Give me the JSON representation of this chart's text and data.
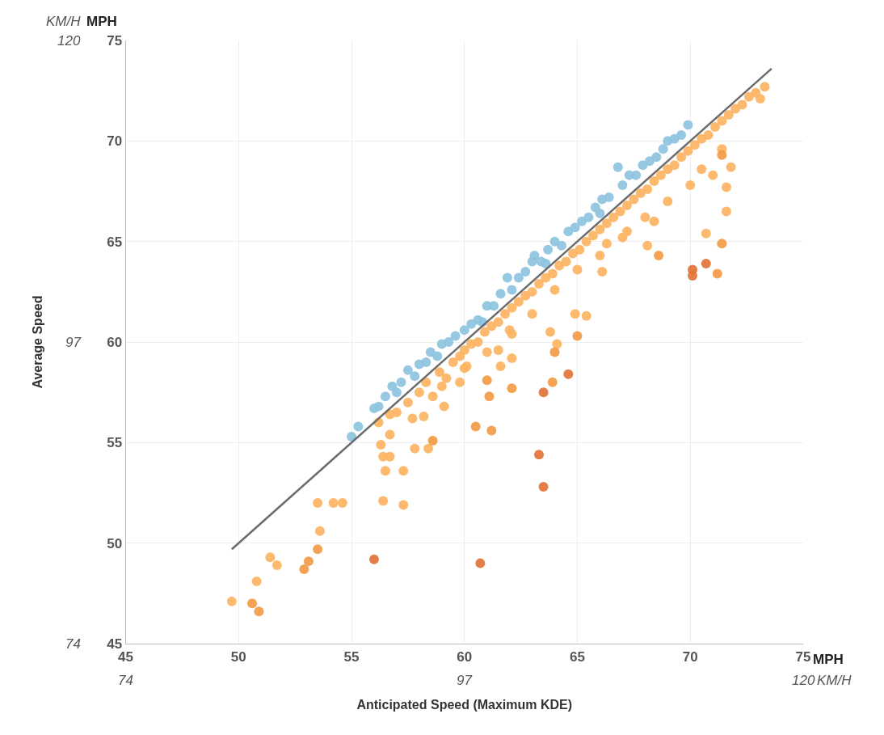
{
  "chart_data": {
    "type": "scatter",
    "xlabel": "Anticipated Speed (Maximum KDE)",
    "y2label": "Average Speed",
    "xlim": [
      45,
      75
    ],
    "xticks": [
      45,
      50,
      55,
      60,
      65,
      70,
      75
    ],
    "ylim": [
      45,
      75
    ],
    "yticks": [
      45,
      50,
      55,
      60,
      65,
      70,
      75
    ],
    "x2lim": [
      74,
      120
    ],
    "x2ticks": [
      74,
      97,
      120
    ],
    "y2lim": [
      74,
      120
    ],
    "y2ticks": [
      74,
      97,
      120
    ],
    "grid": true,
    "legend": false,
    "marker": "circle",
    "tick_labels": "xy",
    "annotations": [
      "KM/H",
      "MPH",
      "MPH",
      "KM/H"
    ],
    "series": [
      {
        "color": "#8ec3e0",
        "x": [
          55.0,
          55.3,
          56.0,
          56.2,
          56.5,
          56.8,
          57.0,
          57.2,
          57.5,
          57.8,
          58.0,
          58.3,
          58.5,
          58.8,
          59.0,
          59.3,
          59.6,
          60.0,
          60.3,
          60.6,
          61.0,
          61.3,
          61.6,
          61.9,
          62.1,
          62.4,
          62.7,
          63.0,
          63.1,
          63.4,
          63.7,
          64.0,
          64.3,
          64.6,
          64.9,
          65.2,
          65.5,
          65.8,
          66.1,
          66.4,
          66.8,
          67.0,
          67.3,
          67.6,
          67.9,
          68.2,
          68.5,
          68.8,
          69.0,
          69.3,
          69.6,
          69.9,
          66.0,
          63.6,
          60.8
        ],
        "values": [
          55.3,
          55.8,
          56.7,
          56.8,
          57.3,
          57.8,
          57.5,
          58.0,
          58.6,
          58.3,
          58.9,
          59.0,
          59.5,
          59.3,
          59.9,
          60.0,
          60.3,
          60.6,
          60.9,
          61.1,
          61.8,
          61.8,
          62.4,
          63.2,
          62.6,
          63.2,
          63.5,
          64.0,
          64.3,
          64.0,
          64.6,
          65.0,
          64.8,
          65.5,
          65.7,
          66.0,
          66.2,
          66.7,
          67.1,
          67.2,
          68.7,
          67.8,
          68.3,
          68.3,
          68.8,
          69.0,
          69.2,
          69.6,
          70.0,
          70.1,
          70.3,
          70.8,
          66.4,
          63.9,
          61.0
        ]
      },
      {
        "color": "#fdb462",
        "x": [
          57.0,
          57.5,
          58.0,
          58.3,
          58.6,
          58.9,
          59.2,
          59.5,
          59.8,
          60.0,
          60.3,
          60.6,
          60.9,
          61.2,
          61.5,
          61.8,
          62.1,
          62.4,
          62.7,
          63.0,
          63.3,
          63.6,
          63.9,
          64.2,
          64.5,
          64.8,
          65.1,
          65.4,
          65.7,
          66.0,
          66.3,
          66.6,
          66.9,
          67.2,
          67.5,
          67.8,
          68.1,
          68.4,
          68.7,
          69.0,
          69.3,
          69.6,
          69.9,
          70.2,
          70.5,
          70.8,
          71.1,
          71.4,
          71.7,
          72.0,
          72.3,
          72.6,
          72.9,
          73.1,
          73.3,
          64.0,
          65.0,
          66.0,
          67.0,
          68.0,
          69.0,
          70.0,
          70.5,
          71.0,
          62.0,
          63.0,
          61.0,
          60.0,
          59.0,
          49.7,
          50.8,
          51.4,
          51.7,
          53.6,
          53.5,
          54.2,
          54.6,
          56.4,
          57.3,
          56.5,
          57.3,
          56.4,
          56.7,
          56.3,
          56.7,
          56.2,
          57.8,
          58.4,
          56.7,
          57.7,
          58.2,
          59.1,
          59.8,
          60.1,
          61.5,
          62.1,
          62.1,
          61.6,
          71.6,
          70.7,
          71.6,
          71.8,
          71.4,
          68.4,
          67.2,
          66.3,
          66.1,
          65.4,
          64.9,
          63.8,
          64.1,
          68.1
        ],
        "values": [
          56.5,
          57.0,
          57.5,
          58.0,
          57.3,
          58.5,
          58.2,
          59.0,
          59.3,
          59.6,
          59.9,
          60.0,
          60.5,
          60.8,
          61.0,
          61.4,
          61.7,
          62.0,
          62.3,
          62.5,
          62.9,
          63.2,
          63.4,
          63.8,
          64.0,
          64.4,
          64.6,
          65.0,
          65.3,
          65.6,
          65.9,
          66.2,
          66.5,
          66.8,
          67.1,
          67.4,
          67.6,
          68.0,
          68.3,
          68.6,
          68.8,
          69.2,
          69.5,
          69.8,
          70.1,
          70.3,
          70.7,
          71.0,
          71.3,
          71.6,
          71.8,
          72.2,
          72.4,
          72.1,
          72.7,
          62.6,
          63.6,
          64.3,
          65.2,
          66.2,
          67.0,
          67.8,
          68.6,
          68.3,
          60.6,
          61.4,
          59.5,
          58.7,
          57.8,
          47.1,
          48.1,
          49.3,
          48.9,
          50.6,
          52.0,
          52.0,
          52.0,
          52.1,
          51.9,
          53.6,
          53.6,
          54.3,
          54.3,
          54.9,
          55.4,
          56.0,
          54.7,
          54.7,
          56.4,
          56.2,
          56.3,
          56.8,
          58.0,
          58.8,
          59.6,
          59.2,
          60.4,
          58.8,
          66.5,
          65.4,
          67.7,
          68.7,
          69.6,
          66.0,
          65.5,
          64.9,
          63.5,
          61.3,
          61.4,
          60.5,
          59.9,
          64.8
        ]
      },
      {
        "color": "#f39a45",
        "x": [
          50.6,
          50.9,
          52.9,
          53.1,
          53.5,
          58.6,
          60.5,
          61.2,
          61.0,
          61.1,
          62.1,
          64.0,
          63.9,
          68.6,
          71.4,
          71.4,
          71.2,
          65.0
        ],
        "values": [
          47.0,
          46.6,
          48.7,
          49.1,
          49.7,
          55.1,
          55.8,
          55.6,
          58.1,
          57.3,
          57.7,
          59.5,
          58.0,
          64.3,
          64.9,
          69.3,
          63.4,
          60.3
        ]
      },
      {
        "color": "#e2733a",
        "x": [
          56.0,
          60.7,
          63.3,
          63.5,
          63.5,
          64.6,
          70.7,
          70.1,
          70.1
        ],
        "values": [
          49.2,
          49.0,
          54.4,
          52.8,
          57.5,
          58.4,
          63.9,
          63.6,
          63.3
        ]
      },
      {
        "type": "line",
        "color": "#6b6b6b",
        "marker": "none",
        "x": [
          49.7,
          73.6
        ],
        "values": [
          49.7,
          73.6
        ],
        "line_style": "solid"
      }
    ]
  }
}
